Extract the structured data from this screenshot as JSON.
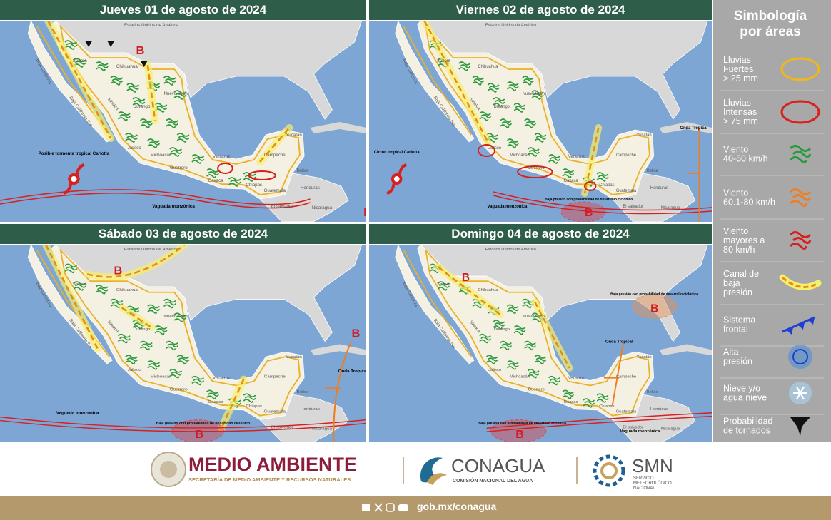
{
  "panels": [
    {
      "title": "Jueves 01 de agosto de 2024",
      "map_labels": [
        "Estados Unidos de América",
        "Sonora",
        "Chihuahua",
        "Baja California",
        "Baja California Sur",
        "Sinaloa",
        "Durango",
        "Nuevo León",
        "Jalisco",
        "Michoacán",
        "Guerrero",
        "Oaxaca",
        "Chiapas",
        "Veracruz",
        "Campeche",
        "Yucatán",
        "Belice",
        "Guatemala",
        "Honduras",
        "El salvador",
        "Nicaragua"
      ],
      "annotations": [
        "Posible tormenta tropical Carlotta",
        "Vaguada monzónica",
        "B",
        "B"
      ]
    },
    {
      "title": "Viernes 02 de agosto de 2024",
      "map_labels": [
        "Estados Unidos de América",
        "Sonora",
        "Chihuahua",
        "Baja California",
        "Baja California Sur",
        "Sinaloa",
        "Durango",
        "Nuevo León",
        "Jalisco",
        "Michoacán",
        "Guerrero",
        "Oaxaca",
        "Chiapas",
        "Veracruz",
        "Campeche",
        "Yucatán",
        "Belice",
        "Guatemala",
        "Honduras",
        "El salvador",
        "Nicaragua"
      ],
      "annotations": [
        "Ciclón tropical Carlotta",
        "Vaguada monzónica",
        "Baja presión con probabilidad de desarrollo ciclónico",
        "B",
        "Onda Tropical"
      ]
    },
    {
      "title": "Sábado 03 de agosto de 2024",
      "map_labels": [
        "Estados Unidos de América",
        "Sonora",
        "Chihuahua",
        "Baja California",
        "Baja California Sur",
        "Sinaloa",
        "Durango",
        "Nuevo León",
        "Jalisco",
        "Michoacán",
        "Guerrero",
        "Oaxaca",
        "Chiapas",
        "Veracruz",
        "Campeche",
        "Yucatán",
        "Belice",
        "Guatemala",
        "Honduras",
        "El salvador",
        "Nicaragua"
      ],
      "annotations": [
        "B",
        "Onda Tropical",
        "B",
        "Vaguada monzónica",
        "Baja presión con probabilidad de desarrollo ciclónico",
        "B"
      ]
    },
    {
      "title": "Domingo 04 de agosto de 2024",
      "map_labels": [
        "Estados Unidos de América",
        "Sonora",
        "Chihuahua",
        "Baja California",
        "Baja California Sur",
        "Sinaloa",
        "Durango",
        "Nuevo León",
        "Jalisco",
        "Michoacán",
        "Guerrero",
        "Oaxaca",
        "Chiapas",
        "Veracruz",
        "Campeche",
        "Yucatán",
        "Belice",
        "Guatemala",
        "Honduras",
        "El salvador",
        "Nicaragua"
      ],
      "annotations": [
        "B",
        "Baja presión con probabilidad de desarrollo ciclónico",
        "B",
        "Onda Tropical",
        "Vaguada monzónica",
        "Baja presión con probabilidad de desarrollo ciclónico",
        "B"
      ]
    }
  ],
  "legend": {
    "title": [
      "Simbología",
      "por áreas"
    ],
    "items": [
      [
        "Lluvias",
        "Fuertes",
        "> 25 mm"
      ],
      [
        "Lluvias",
        "Intensas",
        "> 75 mm"
      ],
      [
        "Viento",
        "40-60 km/h"
      ],
      [
        "Viento",
        "60.1-80 km/h"
      ],
      [
        "Viento",
        "mayores a",
        "80 km/h"
      ],
      [
        "Canal de",
        "baja",
        "presión"
      ],
      [
        "Sistema",
        "frontal"
      ],
      [
        "Alta",
        "presión"
      ],
      [
        "Nieve y/o",
        "agua nieve"
      ],
      [
        "Probabilidad",
        "de tornados"
      ]
    ]
  },
  "footer": {
    "semarnat": {
      "name": "MEDIO AMBIENTE",
      "subtitle": "SECRETARÍA DE MEDIO AMBIENTE Y RECURSOS NATURALES"
    },
    "conagua": {
      "name": "CONAGUA",
      "subtitle": "COMISIÓN NACIONAL DEL AGUA"
    },
    "smn": {
      "name": "SMN",
      "subtitle": [
        "SERVICIO",
        "METEOROLÓGICO",
        "NACIONAL"
      ]
    },
    "url": "gob.mx/conagua"
  }
}
